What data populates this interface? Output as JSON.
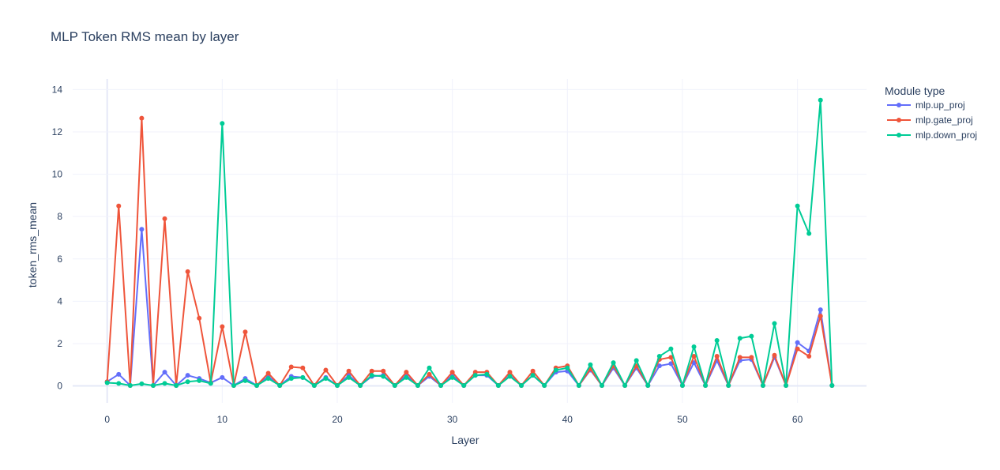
{
  "chart_data": {
    "type": "line",
    "title": "MLP Token RMS mean by layer",
    "xlabel": "Layer",
    "ylabel": "token_rms_mean",
    "xlim": [
      -3,
      66
    ],
    "ylim": [
      -0.8,
      14.5
    ],
    "xticks": [
      0,
      10,
      20,
      30,
      40,
      50,
      60
    ],
    "yticks": [
      0,
      2,
      4,
      6,
      8,
      10,
      12,
      14
    ],
    "grid": true,
    "legend": {
      "title": "Module type",
      "position": "top-right"
    },
    "x": [
      0,
      1,
      2,
      3,
      4,
      5,
      6,
      7,
      8,
      9,
      10,
      11,
      12,
      13,
      14,
      15,
      16,
      17,
      18,
      19,
      20,
      21,
      22,
      23,
      24,
      25,
      26,
      27,
      28,
      29,
      30,
      31,
      32,
      33,
      34,
      35,
      36,
      37,
      38,
      39,
      40,
      41,
      42,
      43,
      44,
      45,
      46,
      47,
      48,
      49,
      50,
      51,
      52,
      53,
      54,
      55,
      56,
      57,
      58,
      59,
      60,
      61,
      62,
      63
    ],
    "series": [
      {
        "name": "mlp.up_proj",
        "color": "#636efa",
        "values": [
          0.2,
          0.55,
          0.02,
          7.4,
          0.02,
          0.65,
          0.02,
          0.5,
          0.35,
          0.15,
          0.4,
          0.02,
          0.35,
          0.02,
          0.45,
          0.02,
          0.45,
          0.4,
          0.02,
          0.4,
          0.02,
          0.5,
          0.02,
          0.45,
          0.5,
          0.02,
          0.5,
          0.02,
          0.45,
          0.02,
          0.5,
          0.02,
          0.5,
          0.5,
          0.02,
          0.5,
          0.02,
          0.5,
          0.02,
          0.65,
          0.7,
          0.02,
          0.75,
          0.02,
          0.85,
          0.02,
          0.85,
          0.02,
          0.95,
          1.05,
          0.02,
          1.1,
          0.02,
          1.2,
          0.02,
          1.2,
          1.25,
          0.02,
          1.35,
          0.02,
          2.05,
          1.65,
          3.6,
          0.02
        ]
      },
      {
        "name": "mlp.gate_proj",
        "color": "#ef553b",
        "values": [
          0.2,
          8.5,
          0.02,
          12.65,
          0.02,
          7.9,
          0.02,
          5.4,
          3.2,
          0.15,
          2.8,
          0.02,
          2.55,
          0.02,
          0.6,
          0.02,
          0.9,
          0.85,
          0.02,
          0.75,
          0.02,
          0.7,
          0.02,
          0.7,
          0.7,
          0.02,
          0.65,
          0.02,
          0.55,
          0.02,
          0.65,
          0.02,
          0.65,
          0.65,
          0.02,
          0.65,
          0.02,
          0.7,
          0.02,
          0.85,
          0.95,
          0.02,
          0.8,
          0.02,
          0.95,
          0.02,
          0.95,
          0.02,
          1.25,
          1.35,
          0.02,
          1.4,
          0.02,
          1.4,
          0.02,
          1.35,
          1.35,
          0.02,
          1.45,
          0.02,
          1.75,
          1.4,
          3.3,
          0.02
        ]
      },
      {
        "name": "mlp.down_proj",
        "color": "#00cc96",
        "values": [
          0.15,
          0.12,
          0.02,
          0.1,
          0.02,
          0.12,
          0.02,
          0.2,
          0.25,
          0.12,
          12.4,
          0.02,
          0.25,
          0.02,
          0.35,
          0.02,
          0.35,
          0.4,
          0.02,
          0.35,
          0.02,
          0.4,
          0.02,
          0.5,
          0.45,
          0.02,
          0.4,
          0.02,
          0.85,
          0.02,
          0.4,
          0.02,
          0.5,
          0.55,
          0.02,
          0.45,
          0.02,
          0.5,
          0.02,
          0.75,
          0.85,
          0.02,
          1.0,
          0.02,
          1.1,
          0.02,
          1.2,
          0.02,
          1.4,
          1.75,
          0.02,
          1.85,
          0.02,
          2.15,
          0.02,
          2.25,
          2.35,
          0.02,
          2.95,
          0.02,
          8.5,
          7.2,
          13.5,
          0.02
        ]
      }
    ]
  }
}
